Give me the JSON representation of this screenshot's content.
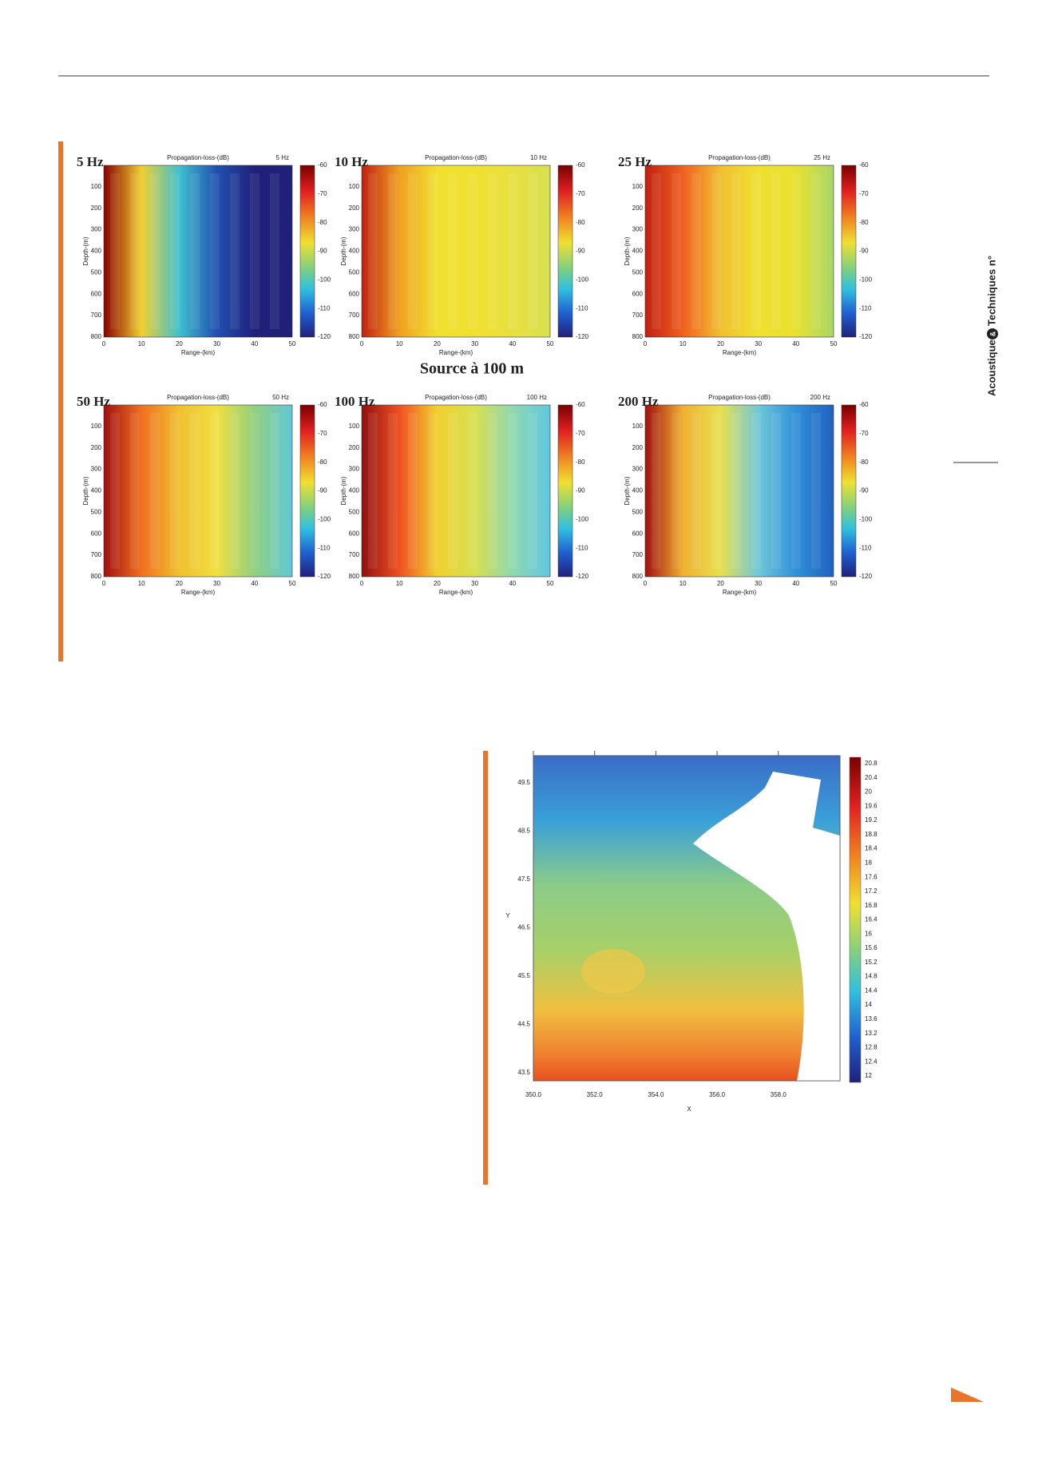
{
  "page": {
    "side_label": {
      "left": "Acoustique",
      "mark": "&",
      "right": "Techniques n°"
    }
  },
  "figure1": {
    "caption": "Source à 100 m",
    "panels": [
      {
        "frequency": "5 Hz",
        "title": "Propagation-loss-(dB)",
        "corner": "5 Hz"
      },
      {
        "frequency": "10 Hz",
        "title": "Propagation-loss-(dB)",
        "corner": "10 Hz"
      },
      {
        "frequency": "25 Hz",
        "title": "Propagation-loss-(dB)",
        "corner": "25 Hz"
      },
      {
        "frequency": "50 Hz",
        "title": "Propagation-loss-(dB)",
        "corner": "50 Hz"
      },
      {
        "frequency": "100 Hz",
        "title": "Propagation-loss-(dB)",
        "corner": "100 Hz"
      },
      {
        "frequency": "200 Hz",
        "title": "Propagation-loss-(dB)",
        "corner": "200 Hz"
      }
    ],
    "axes": {
      "y_label": "Depth-(m)",
      "x_label": "Range-(km)",
      "y_ticks": [
        100,
        200,
        300,
        400,
        500,
        600,
        700,
        800
      ],
      "x_ticks": [
        0,
        10,
        20,
        30,
        40,
        50
      ],
      "colorbar_ticks": [
        -60,
        -70,
        -80,
        -90,
        -100,
        -110,
        -120
      ]
    }
  },
  "figure2": {
    "x_label": "X",
    "y_label": "Y",
    "x_ticks": [
      "350.0",
      "352.0",
      "354.0",
      "356.0",
      "358.0"
    ],
    "y_ticks": [
      "49.5",
      "48.5",
      "47.5",
      "46.5",
      "45.5",
      "44.5",
      "43.5"
    ],
    "colorbar_ticks": [
      20.8,
      20.4,
      20,
      19.6,
      19.2,
      18.8,
      18.4,
      18,
      17.6,
      17.2,
      16.8,
      16.4,
      16,
      15.6,
      15.2,
      14.8,
      14.4,
      14,
      13.6,
      13.2,
      12.8,
      12.4,
      12
    ]
  }
}
